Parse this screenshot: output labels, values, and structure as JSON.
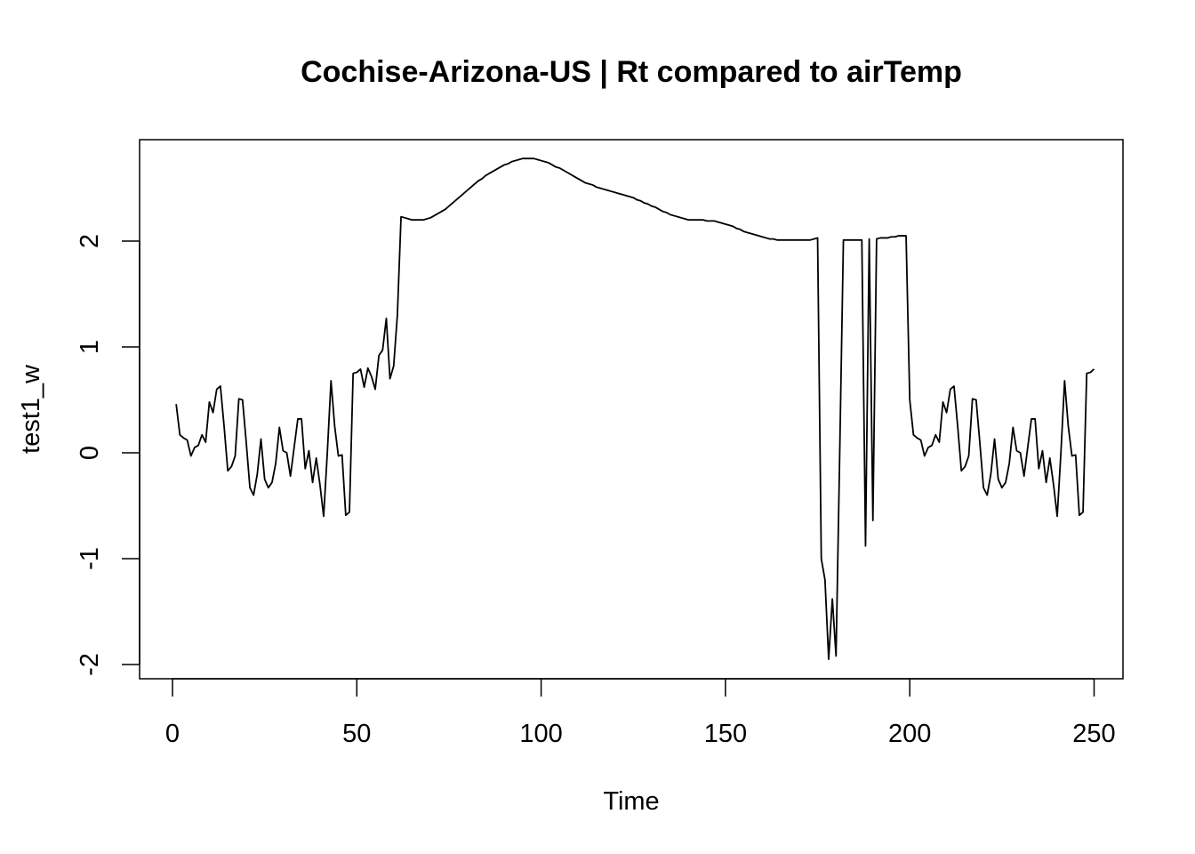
{
  "chart_data": {
    "type": "line",
    "title": "Cochise-Arizona-US | Rt compared to airTemp",
    "xlabel": "Time",
    "ylabel": "test1_w",
    "xlim": [
      1,
      248
    ],
    "ylim": [
      -2.0,
      2.8
    ],
    "xticks": [
      0,
      50,
      100,
      150,
      200,
      250
    ],
    "yticks": [
      -2,
      -1,
      0,
      1,
      2
    ],
    "grid": false,
    "series": [
      {
        "values": [
          0.46,
          0.17,
          0.14,
          0.12,
          -0.03,
          0.05,
          0.07,
          0.17,
          0.1,
          0.48,
          0.38,
          0.6,
          0.63,
          0.25,
          -0.17,
          -0.13,
          -0.03,
          0.51,
          0.5,
          0.1,
          -0.33,
          -0.4,
          -0.2,
          0.13,
          -0.25,
          -0.33,
          -0.28,
          -0.1,
          0.24,
          0.02,
          0.0,
          -0.22,
          0.05,
          0.32,
          0.32,
          -0.15,
          0.02,
          -0.28,
          -0.05,
          -0.3,
          -0.6,
          0.0,
          0.68,
          0.25,
          -0.03,
          -0.02,
          -0.59,
          -0.56,
          0.75,
          0.76,
          0.79,
          0.62,
          0.8,
          0.72,
          0.6,
          0.92,
          0.97,
          1.27,
          0.7,
          0.82,
          1.3,
          2.23,
          2.22,
          2.21,
          2.2,
          2.2,
          2.2,
          2.2,
          2.21,
          2.22,
          2.24,
          2.26,
          2.28,
          2.3,
          2.33,
          2.36,
          2.39,
          2.42,
          2.45,
          2.48,
          2.51,
          2.54,
          2.57,
          2.59,
          2.62,
          2.64,
          2.66,
          2.68,
          2.7,
          2.72,
          2.73,
          2.75,
          2.76,
          2.77,
          2.78,
          2.78,
          2.78,
          2.78,
          2.77,
          2.76,
          2.75,
          2.74,
          2.72,
          2.7,
          2.69,
          2.67,
          2.65,
          2.63,
          2.61,
          2.59,
          2.57,
          2.55,
          2.54,
          2.53,
          2.51,
          2.5,
          2.49,
          2.48,
          2.47,
          2.46,
          2.45,
          2.44,
          2.43,
          2.42,
          2.41,
          2.39,
          2.38,
          2.36,
          2.35,
          2.33,
          2.32,
          2.3,
          2.28,
          2.27,
          2.25,
          2.24,
          2.23,
          2.22,
          2.21,
          2.2,
          2.2,
          2.2,
          2.2,
          2.2,
          2.19,
          2.19,
          2.19,
          2.18,
          2.17,
          2.16,
          2.15,
          2.14,
          2.12,
          2.11,
          2.09,
          2.08,
          2.07,
          2.06,
          2.05,
          2.04,
          2.03,
          2.02,
          2.02,
          2.01,
          2.01,
          2.01,
          2.01,
          2.01,
          2.01,
          2.01,
          2.01,
          2.01,
          2.01,
          2.02,
          2.03,
          -1.0,
          -1.2,
          -1.95,
          -1.38,
          -1.92,
          0.0,
          2.01,
          2.01,
          2.01,
          2.01,
          2.01,
          2.01,
          -0.88,
          2.02,
          -0.64,
          2.02,
          2.03,
          2.03,
          2.03,
          2.04,
          2.04,
          2.05,
          2.05,
          2.05,
          0.5,
          0.17,
          0.14,
          0.12,
          -0.03,
          0.05,
          0.07,
          0.17,
          0.1,
          0.48,
          0.38,
          0.6,
          0.63,
          0.25,
          -0.17,
          -0.13,
          -0.03,
          0.51,
          0.5,
          0.1,
          -0.33,
          -0.4,
          -0.2,
          0.13,
          -0.25,
          -0.33,
          -0.28,
          -0.1,
          0.24,
          0.02,
          0.0,
          -0.22,
          0.05,
          0.32,
          0.32,
          -0.15,
          0.02,
          -0.28,
          -0.05,
          -0.3,
          -0.6,
          0.0,
          0.68,
          0.25,
          -0.03,
          -0.02,
          -0.59,
          -0.56,
          0.75,
          0.76,
          0.79
        ]
      }
    ]
  }
}
